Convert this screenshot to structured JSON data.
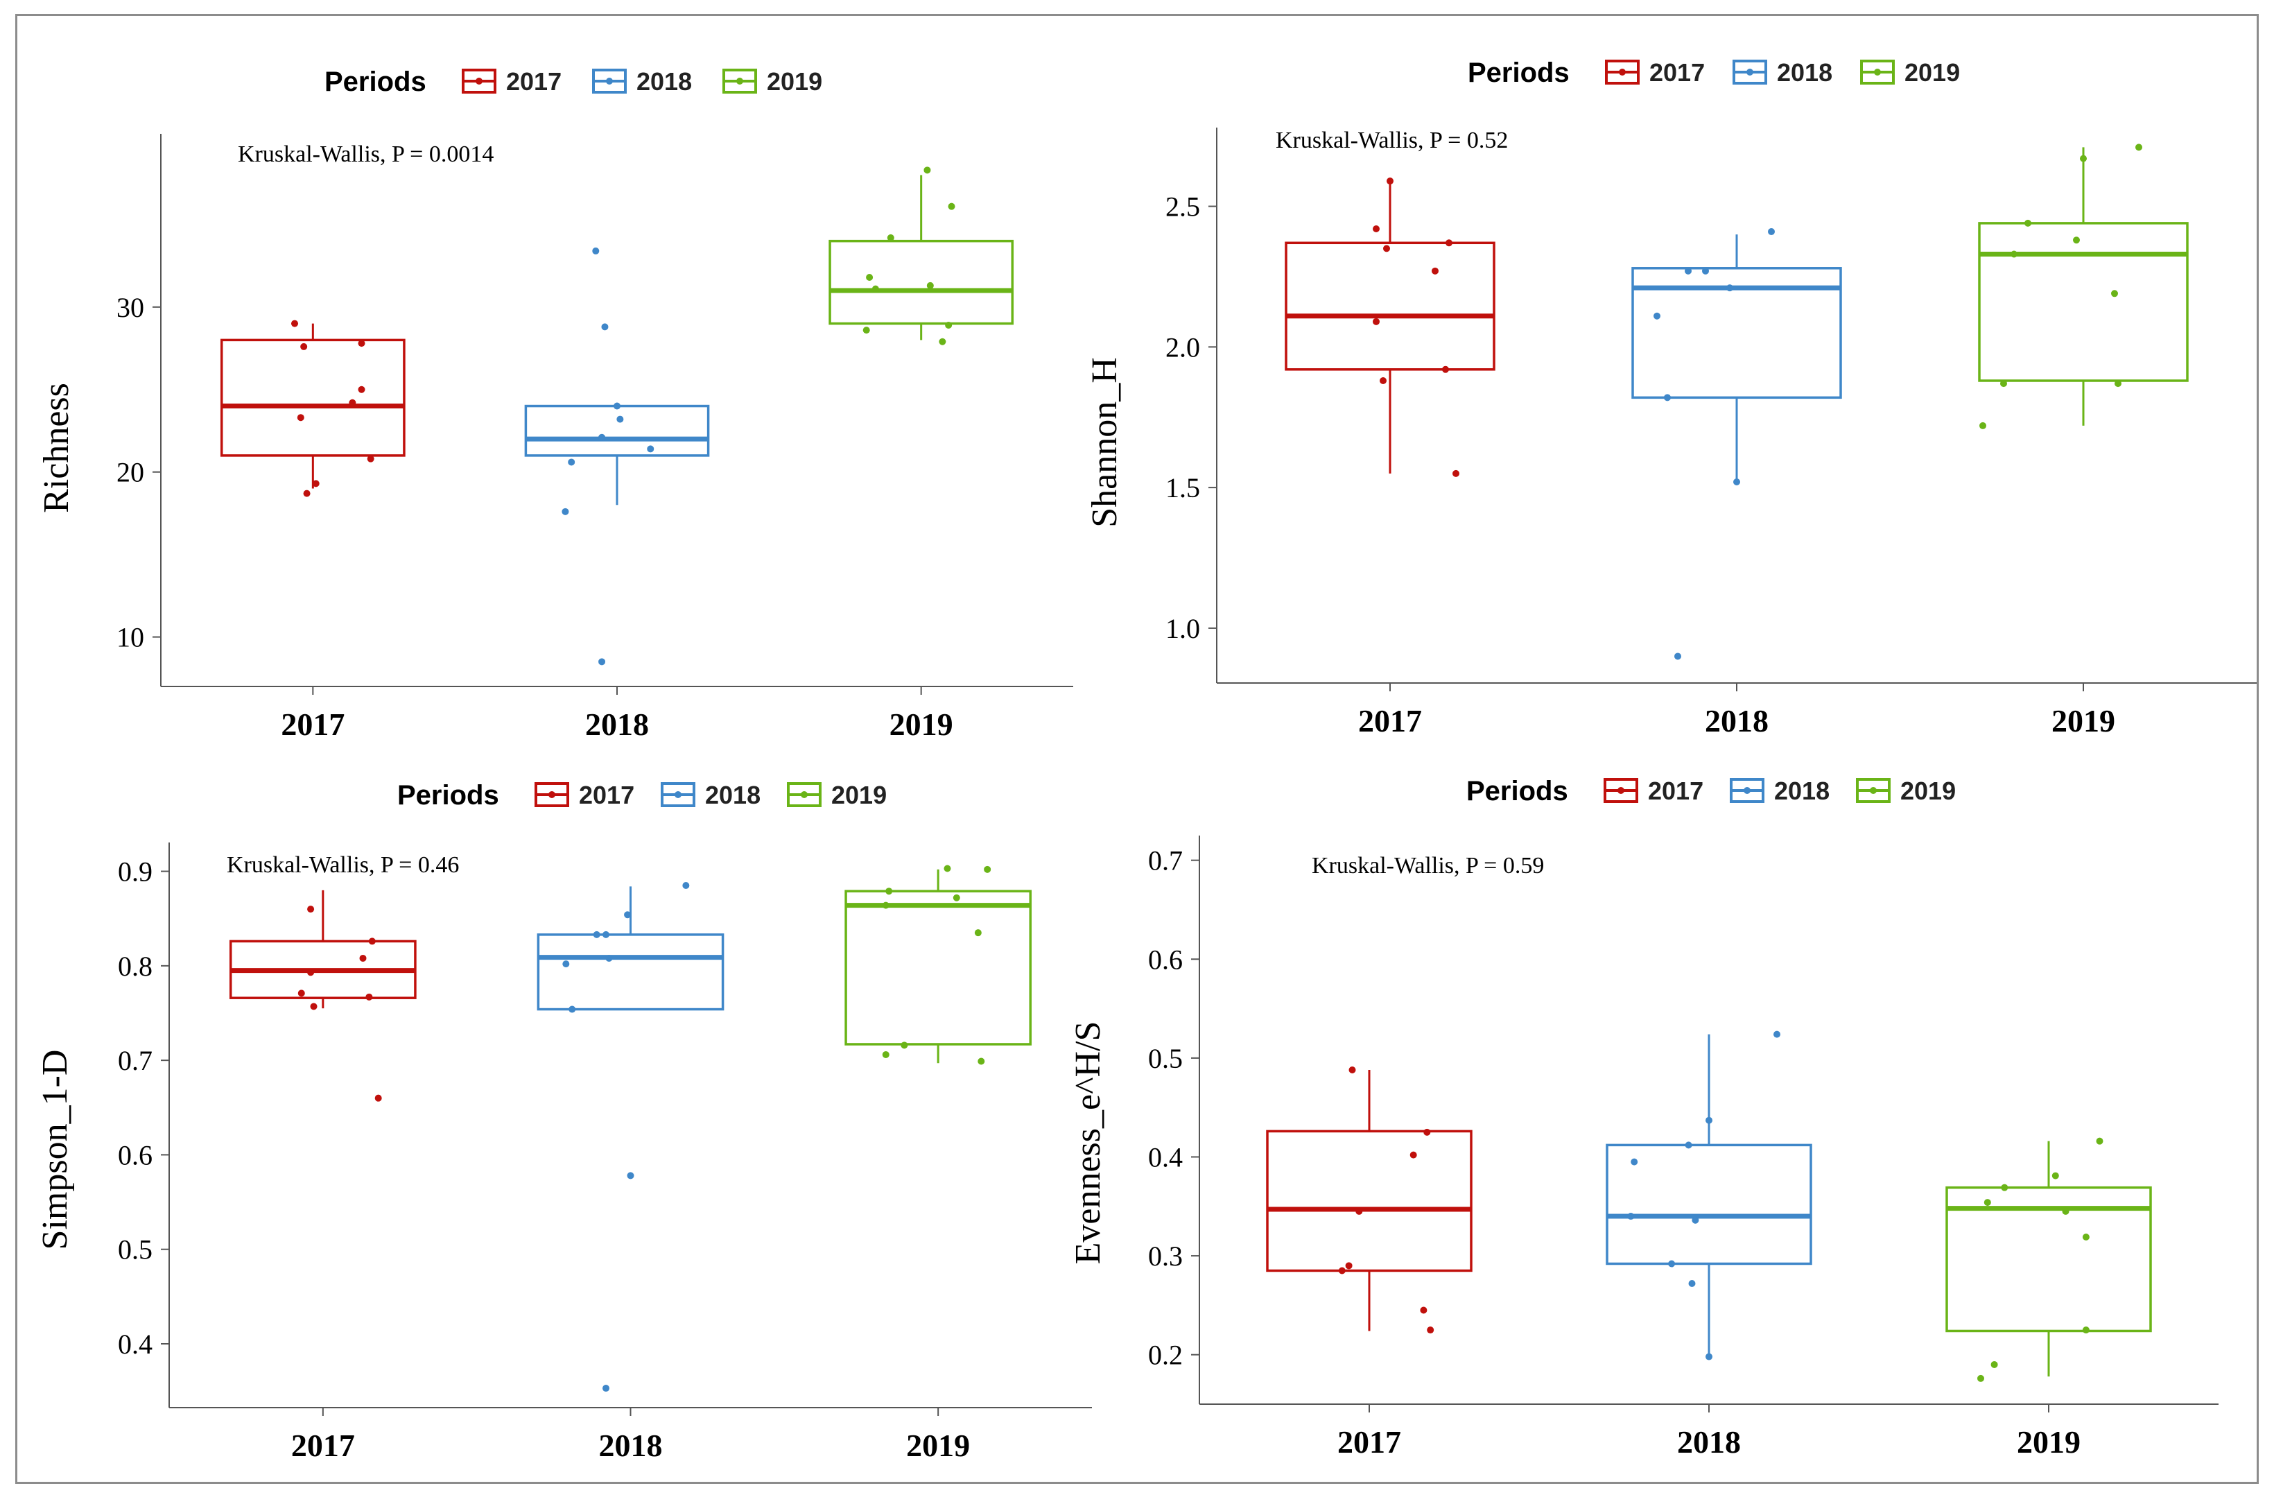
{
  "legend": {
    "title": "Periods",
    "entries": [
      "2017",
      "2018",
      "2019"
    ]
  },
  "colors": {
    "2017": "#c0100c",
    "2018": "#3f87c9",
    "2019": "#6ab417"
  },
  "chart_data": [
    {
      "type": "box",
      "id": "richness",
      "categories": [
        "2017",
        "2018",
        "2019"
      ],
      "ylabel": "Richness",
      "xlabel": "",
      "annotation": "Kruskal-Wallis, P = 0.0014",
      "ylim": [
        7,
        40.5
      ],
      "yticks": [
        10,
        20,
        30
      ],
      "boxes": [
        {
          "whisker_low": 19,
          "q1": 21,
          "median": 24,
          "q3": 28,
          "whisker_high": 29
        },
        {
          "whisker_low": 18,
          "q1": 21,
          "median": 22,
          "q3": 24,
          "whisker_high": 24
        },
        {
          "whisker_low": 28,
          "q1": 29,
          "median": 31,
          "q3": 34,
          "whisker_high": 38
        }
      ],
      "points": [
        {
          "x": -0.06,
          "y": 29
        },
        {
          "x": -0.03,
          "y": 27.6
        },
        {
          "x": 0.16,
          "y": 27.8
        },
        {
          "x": 0.16,
          "y": 25
        },
        {
          "x": 0.13,
          "y": 24.2
        },
        {
          "x": -0.04,
          "y": 23.3
        },
        {
          "x": 0.19,
          "y": 20.8
        },
        {
          "x": 0.01,
          "y": 19.3
        },
        {
          "x": -0.02,
          "y": 18.7
        },
        {
          "x": 0.93,
          "y": 33.4
        },
        {
          "x": 0.96,
          "y": 28.8
        },
        {
          "x": 1.0,
          "y": 24
        },
        {
          "x": 1.01,
          "y": 23.2
        },
        {
          "x": 0.95,
          "y": 22.1
        },
        {
          "x": 1.11,
          "y": 21.4
        },
        {
          "x": 0.85,
          "y": 20.6
        },
        {
          "x": 0.83,
          "y": 17.6
        },
        {
          "x": 0.95,
          "y": 8.5
        },
        {
          "x": 2.02,
          "y": 38.3
        },
        {
          "x": 2.1,
          "y": 36.1
        },
        {
          "x": 1.9,
          "y": 34.2
        },
        {
          "x": 1.83,
          "y": 31.8
        },
        {
          "x": 1.85,
          "y": 31.1
        },
        {
          "x": 2.03,
          "y": 31.3
        },
        {
          "x": 1.82,
          "y": 28.6
        },
        {
          "x": 2.09,
          "y": 28.9
        },
        {
          "x": 2.07,
          "y": 27.9
        }
      ]
    },
    {
      "type": "box",
      "id": "shannon",
      "categories": [
        "2017",
        "2018",
        "2019"
      ],
      "ylabel": "Shannon_H",
      "xlabel": "",
      "annotation": "Kruskal-Wallis, P = 0.52",
      "ylim": [
        0.805,
        2.78
      ],
      "yticks": [
        1.0,
        1.5,
        2.0,
        2.5
      ],
      "ytickFormat": 1,
      "boxes": [
        {
          "whisker_low": 1.55,
          "q1": 1.92,
          "median": 2.11,
          "q3": 2.37,
          "whisker_high": 2.59
        },
        {
          "whisker_low": 1.51,
          "q1": 1.82,
          "median": 2.21,
          "q3": 2.28,
          "whisker_high": 2.4
        },
        {
          "whisker_low": 1.72,
          "q1": 1.88,
          "median": 2.33,
          "q3": 2.44,
          "whisker_high": 2.71
        }
      ],
      "points": [
        {
          "x": 0.0,
          "y": 2.59
        },
        {
          "x": -0.04,
          "y": 2.42
        },
        {
          "x": 0.17,
          "y": 2.37
        },
        {
          "x": 0.13,
          "y": 2.27
        },
        {
          "x": -0.04,
          "y": 2.09
        },
        {
          "x": 0.16,
          "y": 1.92
        },
        {
          "x": -0.02,
          "y": 1.88
        },
        {
          "x": 0.19,
          "y": 1.55
        },
        {
          "x": 1.1,
          "y": 2.41
        },
        {
          "x": -0.01,
          "y": 2.35,
          "g": 1
        },
        {
          "x": 0.86,
          "y": 2.27
        },
        {
          "x": 0.91,
          "y": 2.27
        },
        {
          "x": 0.98,
          "y": 2.21
        },
        {
          "x": 0.77,
          "y": 2.11
        },
        {
          "x": 0.8,
          "y": 1.82
        },
        {
          "x": 1.0,
          "y": 1.52
        },
        {
          "x": 0.83,
          "y": 0.9
        },
        {
          "x": 2.16,
          "y": 2.71
        },
        {
          "x": 2.0,
          "y": 2.67
        },
        {
          "x": 1.84,
          "y": 2.44
        },
        {
          "x": 1.98,
          "y": 2.38
        },
        {
          "x": 1.8,
          "y": 2.33
        },
        {
          "x": 2.09,
          "y": 2.19
        },
        {
          "x": 1.77,
          "y": 1.87
        },
        {
          "x": 2.1,
          "y": 1.87
        },
        {
          "x": 1.71,
          "y": 1.72
        }
      ]
    },
    {
      "type": "box",
      "id": "simpson",
      "categories": [
        "2017",
        "2018",
        "2019"
      ],
      "ylabel": "Simpson_1-D",
      "xlabel": "",
      "annotation": "Kruskal-Wallis, P = 0.46",
      "ylim": [
        0.3325,
        0.9305
      ],
      "yticks": [
        0.4,
        0.5,
        0.6,
        0.7,
        0.8,
        0.9
      ],
      "ytickFormat": 1,
      "boxes": [
        {
          "whisker_low": 0.755,
          "q1": 0.766,
          "median": 0.795,
          "q3": 0.826,
          "whisker_high": 0.88
        },
        {
          "whisker_low": 0.754,
          "q1": 0.754,
          "median": 0.809,
          "q3": 0.833,
          "whisker_high": 0.884
        },
        {
          "whisker_low": 0.697,
          "q1": 0.717,
          "median": 0.864,
          "q3": 0.879,
          "whisker_high": 0.902
        }
      ],
      "points": [
        {
          "x": -0.04,
          "y": 0.86
        },
        {
          "x": 0.16,
          "y": 0.826
        },
        {
          "x": 0.13,
          "y": 0.808
        },
        {
          "x": -0.04,
          "y": 0.793
        },
        {
          "x": -0.07,
          "y": 0.771
        },
        {
          "x": 0.15,
          "y": 0.767
        },
        {
          "x": -0.03,
          "y": 0.757
        },
        {
          "x": 0.18,
          "y": 0.66
        },
        {
          "x": 1.18,
          "y": 0.885
        },
        {
          "x": 0.99,
          "y": 0.854
        },
        {
          "x": 0.89,
          "y": 0.833
        },
        {
          "x": 0.92,
          "y": 0.833
        },
        {
          "x": 0.93,
          "y": 0.808
        },
        {
          "x": 0.79,
          "y": 0.802
        },
        {
          "x": 0.81,
          "y": 0.754
        },
        {
          "x": 1.0,
          "y": 0.578
        },
        {
          "x": 0.92,
          "y": 0.353
        },
        {
          "x": 2.03,
          "y": 0.903
        },
        {
          "x": 2.16,
          "y": 0.902
        },
        {
          "x": 1.84,
          "y": 0.879
        },
        {
          "x": 2.06,
          "y": 0.872
        },
        {
          "x": 1.83,
          "y": 0.864
        },
        {
          "x": 2.13,
          "y": 0.835
        },
        {
          "x": 1.89,
          "y": 0.716
        },
        {
          "x": 1.83,
          "y": 0.706
        },
        {
          "x": 2.14,
          "y": 0.699
        }
      ]
    },
    {
      "type": "box",
      "id": "evenness",
      "categories": [
        "2017",
        "2018",
        "2019"
      ],
      "ylabel": "Evenness_e^H/S",
      "xlabel": "",
      "annotation": "Kruskal-Wallis, P = 0.59",
      "ylim": [
        0.15,
        0.725
      ],
      "yticks": [
        0.2,
        0.3,
        0.4,
        0.5,
        0.6,
        0.7
      ],
      "ytickFormat": 1,
      "boxes": [
        {
          "whisker_low": 0.224,
          "q1": 0.285,
          "median": 0.347,
          "q3": 0.426,
          "whisker_high": 0.488
        },
        {
          "whisker_low": 0.197,
          "q1": 0.292,
          "median": 0.34,
          "q3": 0.412,
          "whisker_high": 0.524
        },
        {
          "whisker_low": 0.178,
          "q1": 0.224,
          "median": 0.348,
          "q3": 0.369,
          "whisker_high": 0.416
        }
      ],
      "points": [
        {
          "x": -0.05,
          "y": 0.488
        },
        {
          "x": 0.17,
          "y": 0.425
        },
        {
          "x": 0.13,
          "y": 0.402
        },
        {
          "x": -0.03,
          "y": 0.345
        },
        {
          "x": -0.06,
          "y": 0.29
        },
        {
          "x": -0.08,
          "y": 0.285
        },
        {
          "x": 0.16,
          "y": 0.245
        },
        {
          "x": 0.18,
          "y": 0.225
        },
        {
          "x": 1.2,
          "y": 0.524
        },
        {
          "x": 1.0,
          "y": 0.437
        },
        {
          "x": 0.94,
          "y": 0.412
        },
        {
          "x": 0.78,
          "y": 0.395
        },
        {
          "x": 0.77,
          "y": 0.34
        },
        {
          "x": 0.96,
          "y": 0.336
        },
        {
          "x": 0.89,
          "y": 0.292
        },
        {
          "x": 0.95,
          "y": 0.272
        },
        {
          "x": 1.0,
          "y": 0.198
        },
        {
          "x": 2.15,
          "y": 0.416
        },
        {
          "x": 2.02,
          "y": 0.381
        },
        {
          "x": 1.87,
          "y": 0.369
        },
        {
          "x": 1.82,
          "y": 0.354
        },
        {
          "x": 2.05,
          "y": 0.345
        },
        {
          "x": 2.11,
          "y": 0.319
        },
        {
          "x": 2.11,
          "y": 0.225
        },
        {
          "x": 1.84,
          "y": 0.19
        },
        {
          "x": 1.8,
          "y": 0.176
        }
      ]
    }
  ]
}
